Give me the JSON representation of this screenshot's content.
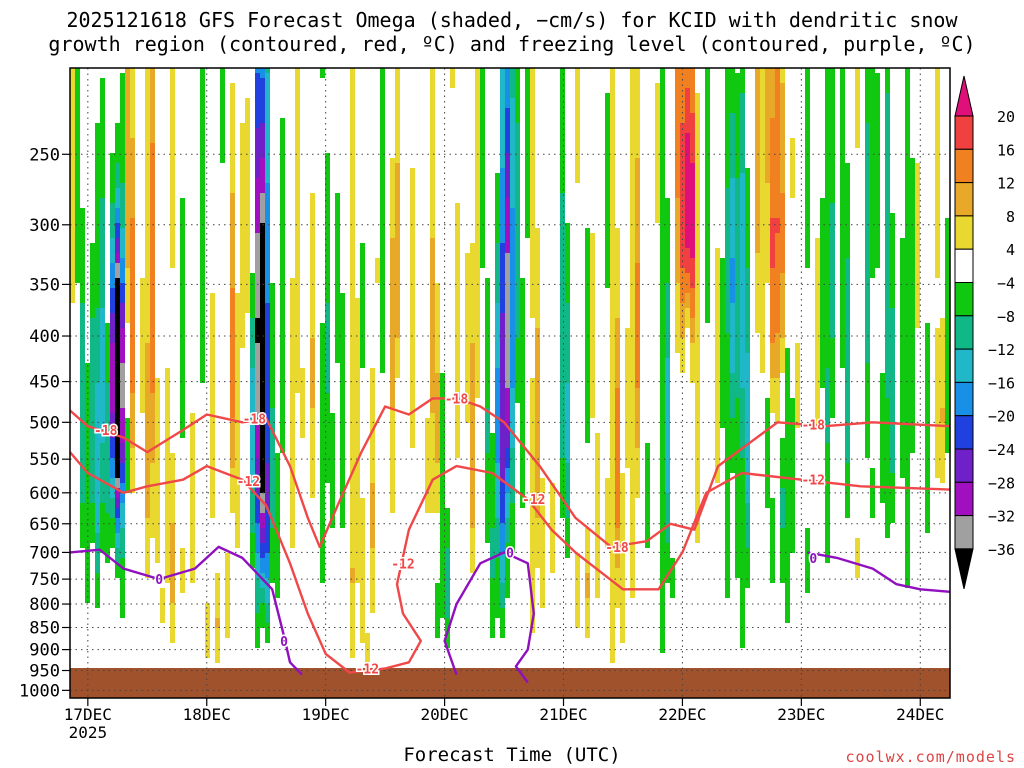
{
  "title_line1": "2025121618 GFS Forecast Omega (shaded, −cm/s) for KCID with dendritic snow",
  "title_line2": "growth region (contoured, red, ºC) and freezing level (contoured, purple, ºC)",
  "credit": "coolwx.com/models",
  "chart_data": {
    "type": "heatmap",
    "title": "2025121618 GFS Forecast Omega (shaded, −cm/s) for KCID with dendritic snow growth region (contoured, red, ºC) and freezing level (contoured, purple, ºC)",
    "xlabel": "Forecast Time (UTC)",
    "ylabel": "",
    "x_ticks": [
      "17DEC",
      "18DEC",
      "19DEC",
      "20DEC",
      "21DEC",
      "22DEC",
      "23DEC",
      "24DEC"
    ],
    "x_sublabel": "2025",
    "xlim_days": [
      16.85,
      24.25
    ],
    "y_ticks": [
      250,
      300,
      350,
      400,
      450,
      500,
      550,
      600,
      650,
      700,
      750,
      800,
      850,
      900,
      950,
      1000
    ],
    "ylim_hpa": [
      200,
      1020
    ],
    "y_inverted": true,
    "grid": true,
    "colorbar": {
      "tick_labels": [
        "20",
        "16",
        "12",
        "8",
        "4",
        "−4",
        "−8",
        "−12",
        "−16",
        "−20",
        "−24",
        "−28",
        "−32",
        "−36"
      ],
      "bins": [
        {
          "from": 20,
          "to": 24,
          "color": "#e0107a"
        },
        {
          "from": 16,
          "to": 20,
          "color": "#f04040"
        },
        {
          "from": 12,
          "to": 16,
          "color": "#f08020"
        },
        {
          "from": 8,
          "to": 12,
          "color": "#e8a828"
        },
        {
          "from": 4,
          "to": 8,
          "color": "#e8d830"
        },
        {
          "from": -4,
          "to": 4,
          "color": "#ffffff"
        },
        {
          "from": -8,
          "to": -4,
          "color": "#10c810"
        },
        {
          "from": -12,
          "to": -8,
          "color": "#10b888"
        },
        {
          "from": -16,
          "to": -12,
          "color": "#20b8c8"
        },
        {
          "from": -20,
          "to": -16,
          "color": "#1890e8"
        },
        {
          "from": -24,
          "to": -20,
          "color": "#2040e0"
        },
        {
          "from": -28,
          "to": -24,
          "color": "#7020c8"
        },
        {
          "from": -32,
          "to": -28,
          "color": "#a010c0"
        },
        {
          "from": -36,
          "to": -32,
          "color": "#a0a0a0"
        },
        {
          "from": -40,
          "to": -36,
          "color": "#000000"
        }
      ]
    },
    "contours": {
      "dgz_color": "#f04848",
      "freezing_color": "#9010c0",
      "dgz_labels": [
        "-18",
        "-12"
      ],
      "freezing_label": "0",
      "dgz_top_minus18": [
        [
          16.85,
          485
        ],
        [
          17.0,
          505
        ],
        [
          17.3,
          520
        ],
        [
          17.5,
          540
        ],
        [
          17.8,
          510
        ],
        [
          18.0,
          490
        ],
        [
          18.3,
          500
        ],
        [
          18.5,
          495
        ],
        [
          18.7,
          560
        ],
        [
          18.85,
          640
        ],
        [
          18.95,
          690
        ],
        [
          19.1,
          620
        ],
        [
          19.3,
          540
        ],
        [
          19.5,
          480
        ],
        [
          19.7,
          490
        ],
        [
          19.9,
          470
        ],
        [
          20.1,
          470
        ],
        [
          20.3,
          480
        ],
        [
          20.5,
          500
        ],
        [
          20.8,
          560
        ],
        [
          21.1,
          640
        ],
        [
          21.4,
          690
        ],
        [
          21.7,
          680
        ],
        [
          21.9,
          650
        ],
        [
          22.1,
          660
        ],
        [
          22.3,
          560
        ],
        [
          22.8,
          500
        ],
        [
          23.2,
          505
        ],
        [
          23.6,
          500
        ],
        [
          24.25,
          505
        ]
      ],
      "dgz_bottom_minus12": [
        [
          16.85,
          540
        ],
        [
          17.0,
          570
        ],
        [
          17.3,
          600
        ],
        [
          17.5,
          590
        ],
        [
          17.8,
          580
        ],
        [
          18.0,
          560
        ],
        [
          18.3,
          580
        ],
        [
          18.5,
          620
        ],
        [
          18.7,
          720
        ],
        [
          18.85,
          820
        ],
        [
          19.0,
          910
        ],
        [
          19.2,
          955
        ],
        [
          19.5,
          945
        ],
        [
          19.7,
          930
        ],
        [
          19.8,
          880
        ],
        [
          19.65,
          820
        ],
        [
          19.6,
          760
        ],
        [
          19.7,
          660
        ],
        [
          19.9,
          580
        ],
        [
          20.1,
          560
        ],
        [
          20.4,
          570
        ],
        [
          20.7,
          610
        ],
        [
          20.9,
          660
        ],
        [
          21.1,
          700
        ],
        [
          21.5,
          770
        ],
        [
          21.8,
          770
        ],
        [
          22.0,
          700
        ],
        [
          22.2,
          600
        ],
        [
          22.5,
          570
        ],
        [
          23.0,
          580
        ],
        [
          23.5,
          590
        ],
        [
          24.25,
          595
        ]
      ],
      "freezing_0": [
        [
          16.85,
          700
        ],
        [
          17.1,
          695
        ],
        [
          17.3,
          730
        ],
        [
          17.6,
          750
        ],
        [
          17.9,
          730
        ],
        [
          18.1,
          690
        ],
        [
          18.3,
          710
        ],
        [
          18.55,
          770
        ],
        [
          18.65,
          870
        ],
        [
          18.7,
          930
        ],
        [
          18.8,
          960
        ]
      ],
      "freezing_0_b": [
        [
          20.1,
          960
        ],
        [
          20.0,
          880
        ],
        [
          20.1,
          800
        ],
        [
          20.3,
          720
        ],
        [
          20.5,
          700
        ],
        [
          20.7,
          720
        ],
        [
          20.75,
          820
        ],
        [
          20.7,
          900
        ],
        [
          20.6,
          940
        ],
        [
          20.7,
          980
        ]
      ],
      "freezing_0_c": [
        [
          23.05,
          700
        ],
        [
          23.3,
          710
        ],
        [
          23.6,
          730
        ],
        [
          23.8,
          760
        ],
        [
          24.0,
          770
        ],
        [
          24.25,
          775
        ]
      ]
    }
  }
}
